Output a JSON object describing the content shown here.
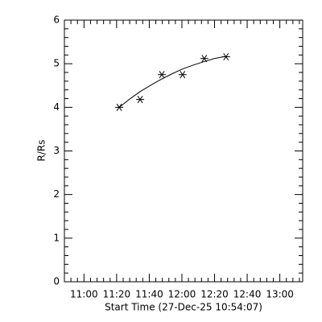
{
  "chart_data": {
    "type": "scatter",
    "x_label": "Start Time (27-Dec-25 10:54:07)",
    "y_label": "R/Rs",
    "series": [
      {
        "marker": "asterisk",
        "color": "#000000",
        "x": [
          681.6,
          694.4,
          707.7,
          720.4,
          733.7,
          747.0
        ],
        "values": [
          4.0,
          4.18,
          4.75,
          4.75,
          5.12,
          5.16
        ]
      },
      {
        "marker": "line",
        "color": "#000000",
        "x": [
          681.6,
          688,
          694.4,
          701,
          707.7,
          714,
          720.4,
          727,
          733.7,
          740,
          747.0
        ],
        "values": [
          4.0,
          4.19,
          4.36,
          4.51,
          4.65,
          4.77,
          4.88,
          4.97,
          5.05,
          5.12,
          5.17
        ]
      }
    ],
    "xlim": [
      648,
      794
    ],
    "xticks": [
      {
        "value": 660,
        "label": "11:00"
      },
      {
        "value": 680,
        "label": "11:20"
      },
      {
        "value": 700,
        "label": "11:40"
      },
      {
        "value": 720,
        "label": "12:00"
      },
      {
        "value": 740,
        "label": "12:20"
      },
      {
        "value": 760,
        "label": "12:40"
      },
      {
        "value": 780,
        "label": "13:00"
      }
    ],
    "ylim": [
      0,
      6
    ],
    "yticks": [
      0,
      1,
      2,
      3,
      4,
      5,
      6
    ]
  }
}
